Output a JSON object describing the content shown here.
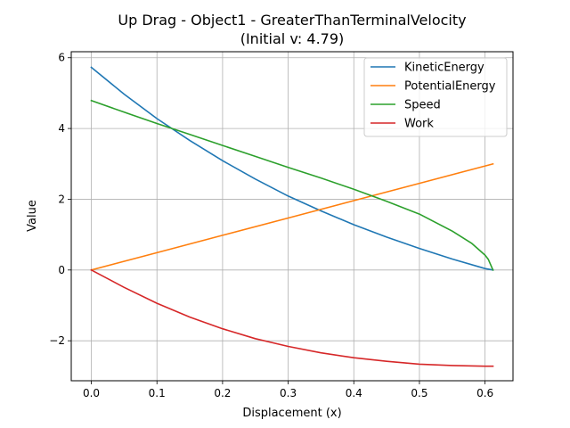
{
  "chart_data": {
    "type": "line",
    "title": "Up Drag - Object1 - GreaterThanTerminalVelocity",
    "subtitle": "(Initial v: 4.79)",
    "xlabel": "Displacement (x)",
    "ylabel": "Value",
    "xlim": [
      -0.0306,
      0.6426
    ],
    "ylim": [
      -3.13,
      6.17
    ],
    "x_ticks": [
      0.0,
      0.1,
      0.2,
      0.3,
      0.4,
      0.5,
      0.6
    ],
    "x_tick_labels": [
      "0.0",
      "0.1",
      "0.2",
      "0.3",
      "0.4",
      "0.5",
      "0.6"
    ],
    "y_ticks": [
      -2,
      0,
      2,
      4,
      6
    ],
    "y_tick_labels": [
      "−2",
      "0",
      "2",
      "4",
      "6"
    ],
    "grid": true,
    "legend_position": "top-right",
    "series": [
      {
        "name": "KineticEnergy",
        "color": "#1f77b4",
        "x": [
          0.0,
          0.05,
          0.1,
          0.15,
          0.2,
          0.25,
          0.3,
          0.35,
          0.4,
          0.45,
          0.5,
          0.55,
          0.6,
          0.612
        ],
        "y": [
          5.73,
          4.97,
          4.28,
          3.66,
          3.09,
          2.57,
          2.09,
          1.67,
          1.28,
          0.93,
          0.61,
          0.31,
          0.04,
          0.0
        ]
      },
      {
        "name": "PotentialEnergy",
        "color": "#ff7f0e",
        "x": [
          0.0,
          0.1,
          0.2,
          0.3,
          0.4,
          0.5,
          0.612
        ],
        "y": [
          0.0,
          0.49,
          0.98,
          1.47,
          1.96,
          2.45,
          3.0
        ]
      },
      {
        "name": "Speed",
        "color": "#2ca02c",
        "x": [
          0.0,
          0.05,
          0.1,
          0.15,
          0.2,
          0.25,
          0.3,
          0.35,
          0.4,
          0.45,
          0.5,
          0.55,
          0.58,
          0.6,
          0.605,
          0.612
        ],
        "y": [
          4.79,
          4.46,
          4.14,
          3.83,
          3.52,
          3.21,
          2.9,
          2.6,
          2.28,
          1.94,
          1.58,
          1.1,
          0.75,
          0.42,
          0.3,
          0.0
        ]
      },
      {
        "name": "Work",
        "color": "#d62728",
        "x": [
          0.0,
          0.05,
          0.1,
          0.15,
          0.2,
          0.25,
          0.3,
          0.35,
          0.4,
          0.45,
          0.5,
          0.55,
          0.6,
          0.612
        ],
        "y": [
          0.0,
          -0.49,
          -0.94,
          -1.33,
          -1.66,
          -1.94,
          -2.16,
          -2.34,
          -2.48,
          -2.58,
          -2.66,
          -2.7,
          -2.72,
          -2.72
        ]
      }
    ]
  }
}
